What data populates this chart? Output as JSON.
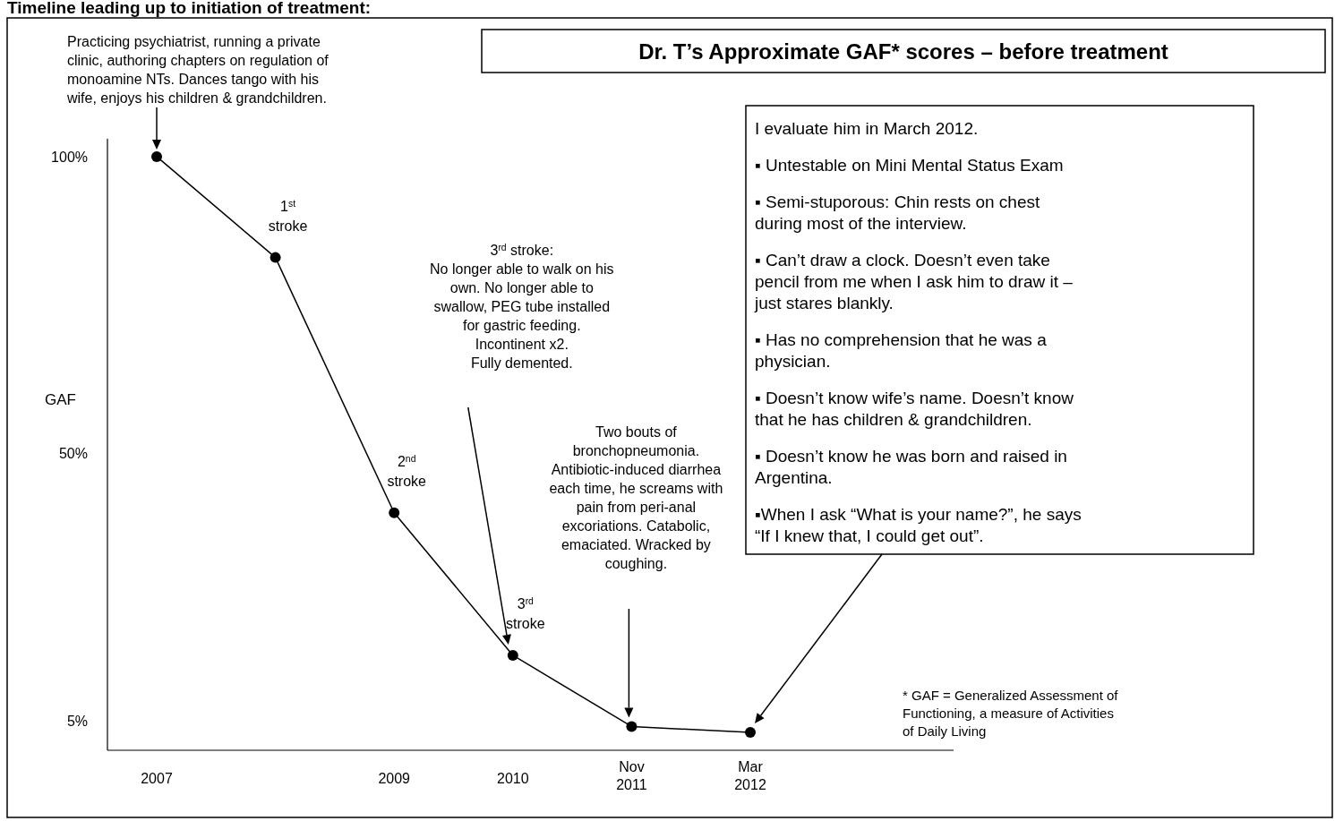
{
  "chart_data": {
    "type": "line",
    "title": "Timeline leading up to initiation of treatment:",
    "subtitle": "Dr. T’s Approximate GAF* scores – before treatment",
    "ylabel": "GAF",
    "categories": [
      "2007",
      null,
      "2009",
      "2010",
      "Nov\n2011",
      "Mar\n2012"
    ],
    "series": [
      {
        "color": "#000000",
        "values": [
          100,
          83,
          40,
          16,
          4,
          3
        ]
      }
    ],
    "ylim": [
      0,
      103
    ],
    "yticks": [
      {
        "value": 100,
        "label": "100%"
      },
      {
        "value": 50,
        "label": "50%"
      },
      {
        "value": 5,
        "label": "5%"
      }
    ],
    "marker": "circle",
    "line_style": "solid",
    "grid": false,
    "annotations": [
      "Practicing psychiatrist, running a private\nclinic, authoring chapters on regulation of\nmonoamine NTs. Dances tango with his\nwife, enjoys his children & grandchildren.",
      "1$^{st}$\nstroke",
      "2$^{nd}$\nstroke",
      "3$^{rd}$\nstroke",
      "3$^{rd}$ stroke:\nNo longer able to walk on his\nown. No longer able to\nswallow, PEG tube installed\nfor gastric feeding.\nIncontinent x2.\nFully demented.",
      "Two bouts of\nbronchopneumonia.\nAntibiotic-induced diarrhea\neach time, he screams with\npain from peri-anal\nexcoriations. Catabolic,\nemaciated. Wracked by\ncoughing.",
      "I evaluate him in March 2012.\n\n▪ Untestable on Mini Mental Status Exam\n\n▪ Semi-stuporous: Chin rests on chest\nduring most of the interview.\n\n▪ Can’t draw a clock. Doesn’t even take\npencil from me when I ask him to draw it –\njust stares blankly.\n\n▪ Has no comprehension that he was a\nphysician.\n\n▪ Doesn’t know wife’s name. Doesn’t know\nthat he has children &  grandchildren.\n\n▪ Doesn’t know he was born and raised in\nArgentina.\n\n▪When I ask “What is your name?”, he says\n“If I knew that, I could get out”.",
      "* GAF = Generalized Assessment of\nFunctioning, a measure of Activities\nof Daily Living"
    ]
  }
}
